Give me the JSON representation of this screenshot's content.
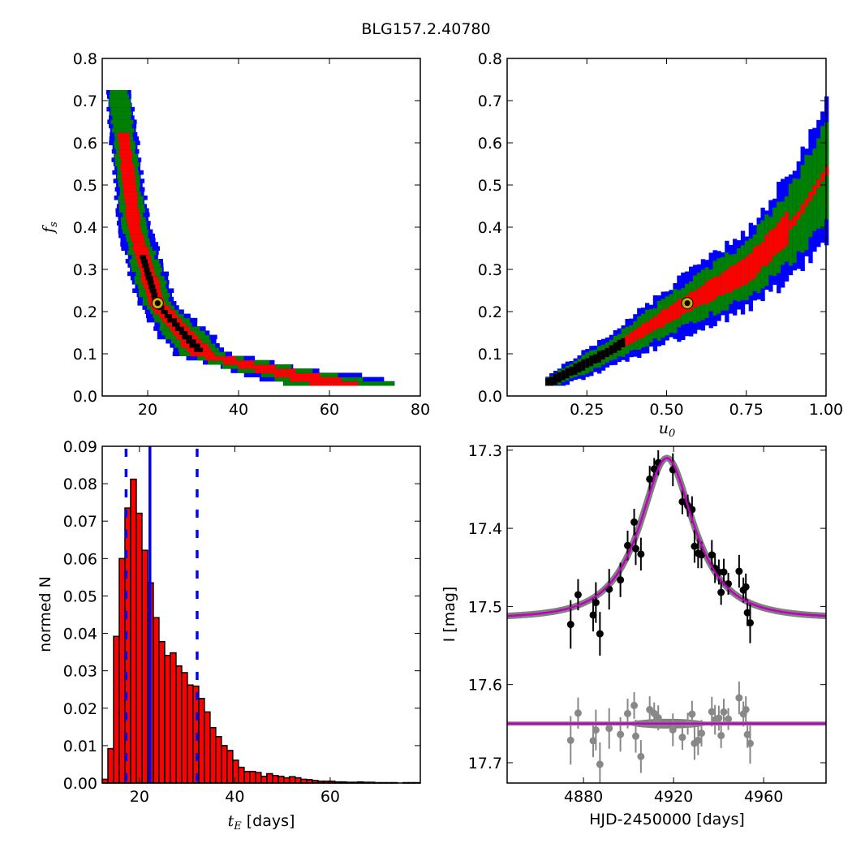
{
  "figure_title": "BLG157.2.40780",
  "colors": {
    "blue": "#0000ff",
    "green": "#008000",
    "red": "#ff0000",
    "black": "#000000",
    "best": "#c8b400",
    "model": "#bf00bf",
    "band": "#808080",
    "resid": "#888888"
  },
  "chart_data": [
    {
      "id": "tE-fs",
      "type": "heatmap",
      "xlabel": "t",
      "xlabel_sub": "E",
      "ylabel": "f",
      "ylabel_sub": "s",
      "xlim": [
        10,
        80
      ],
      "ylim": [
        0,
        0.8
      ],
      "xticks": [
        "20",
        "40",
        "60",
        "80"
      ],
      "xtick_values": [
        20,
        40,
        60,
        80
      ],
      "yticks": [
        "0.0",
        "0.1",
        "0.2",
        "0.3",
        "0.4",
        "0.5",
        "0.6",
        "0.7",
        "0.8"
      ],
      "levels": [
        "black",
        "red",
        "green",
        "blue"
      ],
      "ridge": {
        "fs": [
          0.03,
          0.1,
          0.22,
          0.4,
          0.7
        ],
        "tE": [
          60,
          32,
          22,
          17,
          13.8
        ]
      },
      "fs_range": [
        0.03,
        0.72
      ],
      "best_fit": {
        "tE": 22.2,
        "fs": 0.22
      }
    },
    {
      "id": "u0-fs",
      "type": "heatmap",
      "xlabel": "u",
      "xlabel_sub": "0",
      "xlim": [
        0,
        1
      ],
      "ylim": [
        0,
        0.8
      ],
      "xticks": [
        "0.25",
        "0.50",
        "0.75",
        "1.00"
      ],
      "xtick_values": [
        0.25,
        0.5,
        0.75,
        1.0
      ],
      "yticks": [
        "0.0",
        "0.1",
        "0.2",
        "0.3",
        "0.4",
        "0.5",
        "0.6",
        "0.7",
        "0.8"
      ],
      "levels": [
        "black",
        "red",
        "green",
        "blue"
      ],
      "ridge": {
        "u0": [
          0.12,
          0.3,
          0.56,
          0.75,
          0.9,
          1.0
        ],
        "fs": [
          0.03,
          0.1,
          0.22,
          0.3,
          0.42,
          0.54
        ]
      },
      "best_fit": {
        "u0": 0.565,
        "fs": 0.22
      }
    },
    {
      "id": "tE-hist",
      "type": "bar",
      "xlabel": "t",
      "xlabel_sub": "E",
      "xlabel_suffix": " [days]",
      "ylabel": "normed N",
      "xlim": [
        12.2,
        78.9
      ],
      "ylim": [
        0,
        0.09
      ],
      "xticks": [
        "20",
        "40",
        "60"
      ],
      "xtick_values": [
        20,
        40,
        60
      ],
      "yticks": [
        "0.00",
        "0.01",
        "0.02",
        "0.03",
        "0.04",
        "0.05",
        "0.06",
        "0.07",
        "0.08",
        "0.09"
      ],
      "bin_start": 12.2,
      "bin_width": 1.19,
      "values": [
        0.001,
        0.0092,
        0.0392,
        0.06,
        0.0735,
        0.0812,
        0.0721,
        0.0622,
        0.0535,
        0.0442,
        0.0378,
        0.0341,
        0.0348,
        0.0313,
        0.0295,
        0.0262,
        0.0259,
        0.0226,
        0.019,
        0.0148,
        0.0124,
        0.01,
        0.0087,
        0.0061,
        0.0042,
        0.0031,
        0.0031,
        0.0028,
        0.0018,
        0.0025,
        0.002,
        0.0018,
        0.0014,
        0.0017,
        0.0014,
        0.001,
        0.0009,
        0.0007,
        0.0005,
        0.0005,
        0.0005,
        0.0003,
        0.0003,
        0.0002,
        0.0002,
        0.0003,
        0.0002,
        0.0002,
        0.0001,
        0.0001,
        0.0001,
        0.0001,
        0,
        0.0001,
        0.0001,
        0.0001
      ],
      "median": 22.2,
      "interval": [
        17.2,
        32.1
      ]
    },
    {
      "id": "lightcurve",
      "type": "scatter",
      "xlabel": "HJD-2450000 [days]",
      "ylabel": "I [mag]",
      "xlim": [
        4846.1,
        4987.7
      ],
      "ylim": [
        17.726,
        17.295
      ],
      "xticks": [
        "4880",
        "4920",
        "4960"
      ],
      "xtick_values": [
        4880,
        4920,
        4960
      ],
      "yticks": [
        "17.3",
        "17.4",
        "17.5",
        "17.6",
        "17.7"
      ],
      "ytick_values": [
        17.3,
        17.4,
        17.5,
        17.6,
        17.7
      ],
      "model": {
        "t0": 4917.0,
        "tE": 22,
        "u0": 0.56,
        "fs": 0.21,
        "baseline": 17.515
      },
      "residual_offset": 17.65,
      "points": [
        [
          4874.3,
          17.523,
          0.031
        ],
        [
          4877.6,
          17.485,
          0.02
        ],
        [
          4884.3,
          17.511,
          0.021
        ],
        [
          4885.5,
          17.495,
          0.026
        ],
        [
          4887.3,
          17.535,
          0.028
        ],
        [
          4891.4,
          17.478,
          0.026
        ],
        [
          4896.4,
          17.466,
          0.022
        ],
        [
          4899.6,
          17.422,
          0.019
        ],
        [
          4902.5,
          17.392,
          0.017
        ],
        [
          4903.2,
          17.426,
          0.021
        ],
        [
          4905.5,
          17.433,
          0.021
        ],
        [
          4909.4,
          17.337,
          0.017
        ],
        [
          4911.4,
          17.324,
          0.014
        ],
        [
          4913.2,
          17.316,
          0.016
        ],
        [
          4919.7,
          17.325,
          0.021
        ],
        [
          4923.9,
          17.366,
          0.016
        ],
        [
          4926.3,
          17.371,
          0.014
        ],
        [
          4928.2,
          17.376,
          0.017
        ],
        [
          4929.3,
          17.423,
          0.021
        ],
        [
          4930.9,
          17.432,
          0.019
        ],
        [
          4932.4,
          17.434,
          0.017
        ],
        [
          4937.0,
          17.434,
          0.019
        ],
        [
          4938.4,
          17.451,
          0.019
        ],
        [
          4940.1,
          17.456,
          0.016
        ],
        [
          4941.1,
          17.482,
          0.016
        ],
        [
          4942.3,
          17.456,
          0.017
        ],
        [
          4944.3,
          17.471,
          0.014
        ],
        [
          4949.1,
          17.455,
          0.021
        ],
        [
          4951.0,
          17.479,
          0.016
        ],
        [
          4952.1,
          17.475,
          0.017
        ],
        [
          4952.8,
          17.508,
          0.017
        ],
        [
          4954.0,
          17.521,
          0.026
        ]
      ]
    }
  ]
}
